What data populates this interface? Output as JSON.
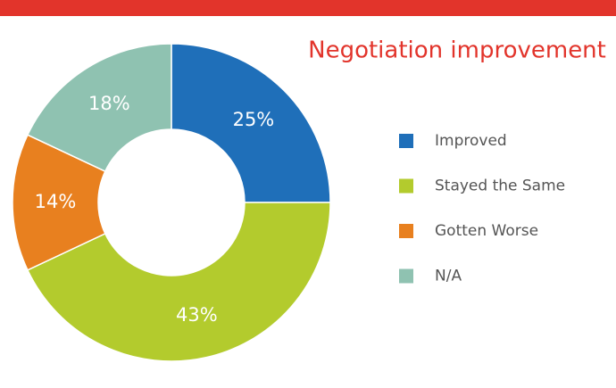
{
  "chart_data": {
    "type": "donut",
    "title": "Negotiation improvement",
    "categories": [
      "Improved",
      "Stayed the Same",
      "Gotten Worse",
      "N/A"
    ],
    "values": [
      25,
      43,
      14,
      18
    ],
    "value_labels": [
      "25%",
      "43%",
      "14%",
      "18%"
    ],
    "colors": [
      "#1f6fb9",
      "#b3cb2d",
      "#e8801f",
      "#8fc2b1"
    ],
    "legend": "right"
  }
}
